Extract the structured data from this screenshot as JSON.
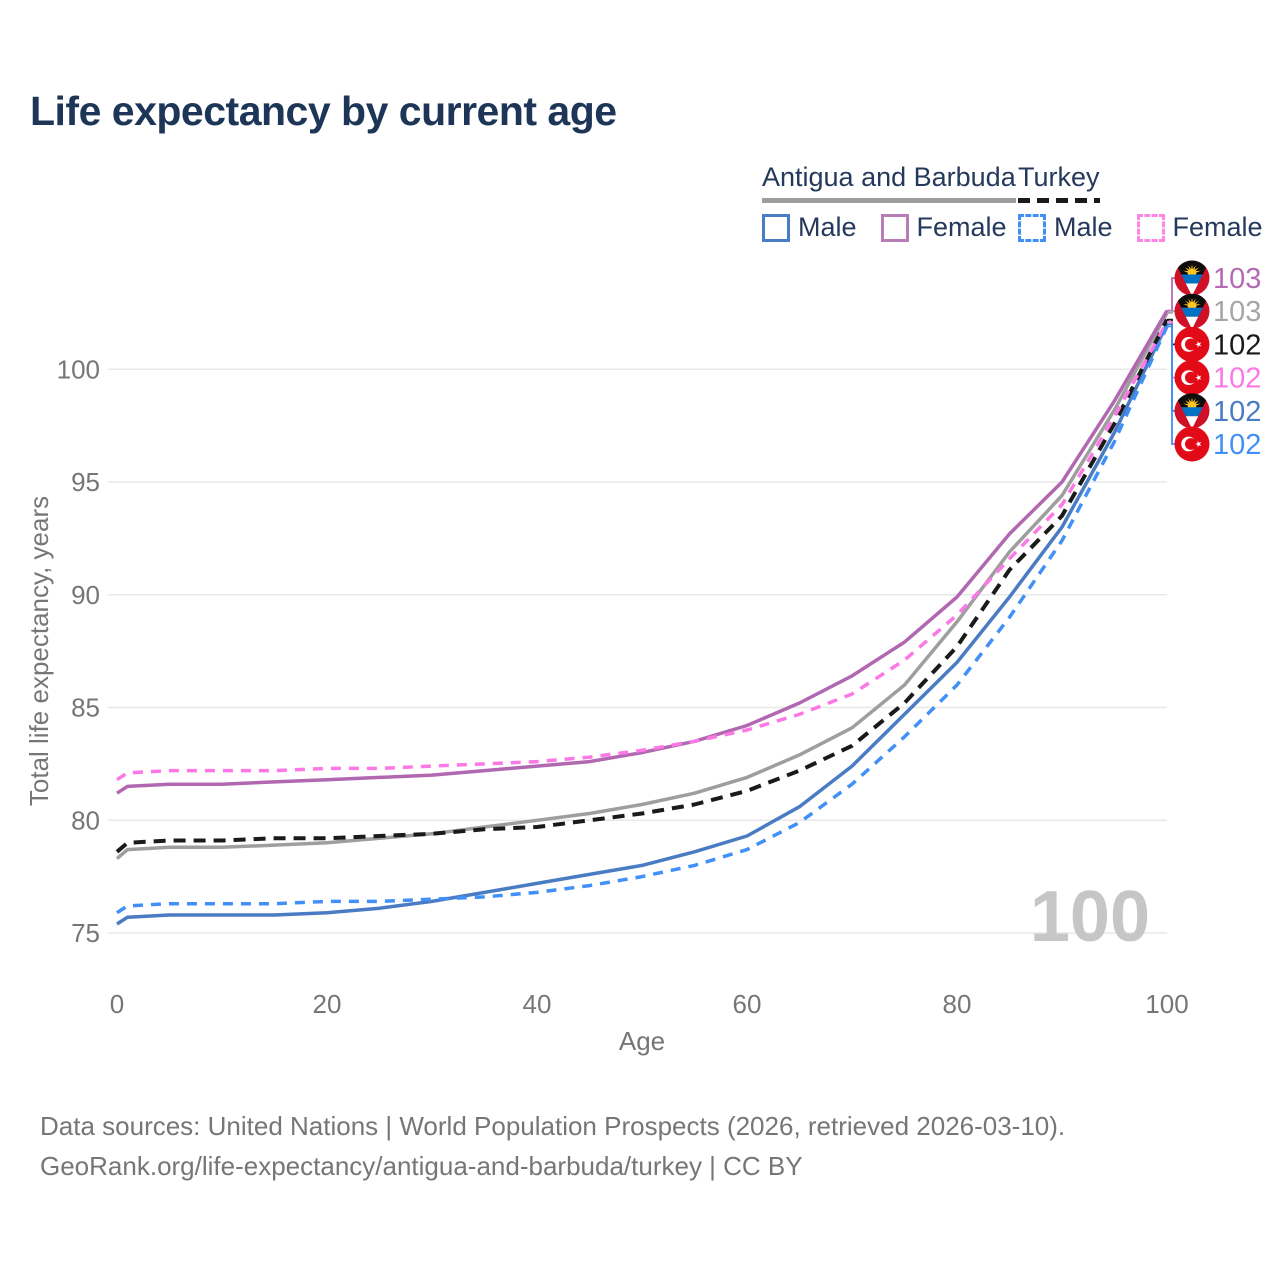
{
  "title": "Life expectancy by current age",
  "legend": {
    "groups": [
      {
        "label": "Antigua and Barbuda",
        "line_style": "solid",
        "line_color": "#9e9e9e",
        "items": [
          {
            "label": "Male",
            "color": "#4a7cc4",
            "style": "solid"
          },
          {
            "label": "Female",
            "color": "#b87cb8",
            "style": "solid"
          }
        ]
      },
      {
        "label": "Turkey",
        "line_style": "dashed",
        "line_color": "#1a1a1a",
        "items": [
          {
            "label": "Male",
            "color": "#4190f7",
            "style": "dashed"
          },
          {
            "label": "Female",
            "color": "#ff85e6",
            "style": "dashed"
          }
        ]
      }
    ]
  },
  "chart_data": {
    "type": "line",
    "title": "Life expectancy by current age",
    "xlabel": "Age",
    "ylabel": "Total life expectancy, years",
    "x_ticks": [
      0,
      20,
      40,
      60,
      80,
      100
    ],
    "y_ticks": [
      75,
      80,
      85,
      90,
      95,
      100
    ],
    "xlim": [
      0,
      100
    ],
    "ylim": [
      74,
      104
    ],
    "grid": "horizontal",
    "watermark": "100",
    "x": [
      0,
      1,
      5,
      10,
      15,
      20,
      25,
      30,
      35,
      40,
      45,
      50,
      55,
      60,
      65,
      70,
      75,
      80,
      85,
      90,
      95,
      100
    ],
    "series": [
      {
        "id": "ab-total",
        "country": "Antigua and Barbuda",
        "sex": "Both",
        "color": "#9e9e9e",
        "style": "solid",
        "values": [
          78.3,
          78.7,
          78.8,
          78.8,
          78.9,
          79.0,
          79.2,
          79.4,
          79.7,
          80.0,
          80.3,
          80.7,
          81.2,
          81.9,
          82.9,
          84.1,
          86.0,
          88.8,
          91.9,
          94.4,
          98.2,
          102.5
        ]
      },
      {
        "id": "ab-female",
        "country": "Antigua and Barbuda",
        "sex": "Female",
        "color": "#b168b1",
        "style": "solid",
        "values": [
          81.2,
          81.5,
          81.6,
          81.6,
          81.7,
          81.8,
          81.9,
          82.0,
          82.2,
          82.4,
          82.6,
          83.0,
          83.5,
          84.2,
          85.2,
          86.4,
          87.9,
          89.9,
          92.7,
          95.0,
          98.6,
          102.6
        ]
      },
      {
        "id": "ab-male",
        "country": "Antigua and Barbuda",
        "sex": "Male",
        "color": "#4a7cc4",
        "style": "solid",
        "values": [
          75.4,
          75.7,
          75.8,
          75.8,
          75.8,
          75.9,
          76.1,
          76.4,
          76.8,
          77.2,
          77.6,
          78.0,
          78.6,
          79.3,
          80.6,
          82.4,
          84.7,
          87.0,
          89.9,
          93.0,
          97.2,
          102.0
        ]
      },
      {
        "id": "tr-total",
        "country": "Turkey",
        "sex": "Both",
        "color": "#1a1a1a",
        "style": "dashed",
        "values": [
          78.6,
          79.0,
          79.1,
          79.1,
          79.2,
          79.2,
          79.3,
          79.4,
          79.6,
          79.7,
          80.0,
          80.3,
          80.7,
          81.3,
          82.2,
          83.3,
          85.2,
          87.7,
          91.1,
          93.5,
          97.6,
          102.2
        ]
      },
      {
        "id": "tr-female",
        "country": "Turkey",
        "sex": "Female",
        "color": "#fc78e6",
        "style": "dashed",
        "values": [
          81.8,
          82.1,
          82.2,
          82.2,
          82.2,
          82.3,
          82.3,
          82.4,
          82.5,
          82.6,
          82.8,
          83.1,
          83.5,
          84.0,
          84.7,
          85.6,
          87.1,
          89.1,
          91.6,
          94.0,
          97.9,
          102.1
        ]
      },
      {
        "id": "tr-male",
        "country": "Turkey",
        "sex": "Male",
        "color": "#4190f7",
        "style": "dashed",
        "values": [
          75.9,
          76.2,
          76.3,
          76.3,
          76.3,
          76.4,
          76.4,
          76.5,
          76.6,
          76.8,
          77.1,
          77.5,
          78.0,
          78.7,
          79.9,
          81.6,
          83.7,
          86.0,
          89.0,
          92.4,
          96.8,
          101.9
        ]
      }
    ],
    "end_labels": [
      {
        "series": "ab-female",
        "flag": "antigua-and-barbuda",
        "text": "103",
        "color": "#b46ab4"
      },
      {
        "series": "ab-total",
        "flag": "antigua-and-barbuda",
        "text": "103",
        "color": "#a6a6a6"
      },
      {
        "series": "tr-total",
        "flag": "turkey",
        "text": "102",
        "color": "#1a1a1a"
      },
      {
        "series": "tr-female",
        "flag": "turkey",
        "text": "102",
        "color": "#fc78e6"
      },
      {
        "series": "ab-male",
        "flag": "antigua-and-barbuda",
        "text": "102",
        "color": "#4a7cc4"
      },
      {
        "series": "tr-male",
        "flag": "turkey",
        "text": "102",
        "color": "#4190f7"
      }
    ]
  },
  "footer": {
    "line1": "Data sources: United Nations | World Population Prospects (2026, retrieved 2026-03-10).",
    "line2": "GeoRank.org/life-expectancy/antigua-and-barbuda/turkey | CC BY"
  }
}
